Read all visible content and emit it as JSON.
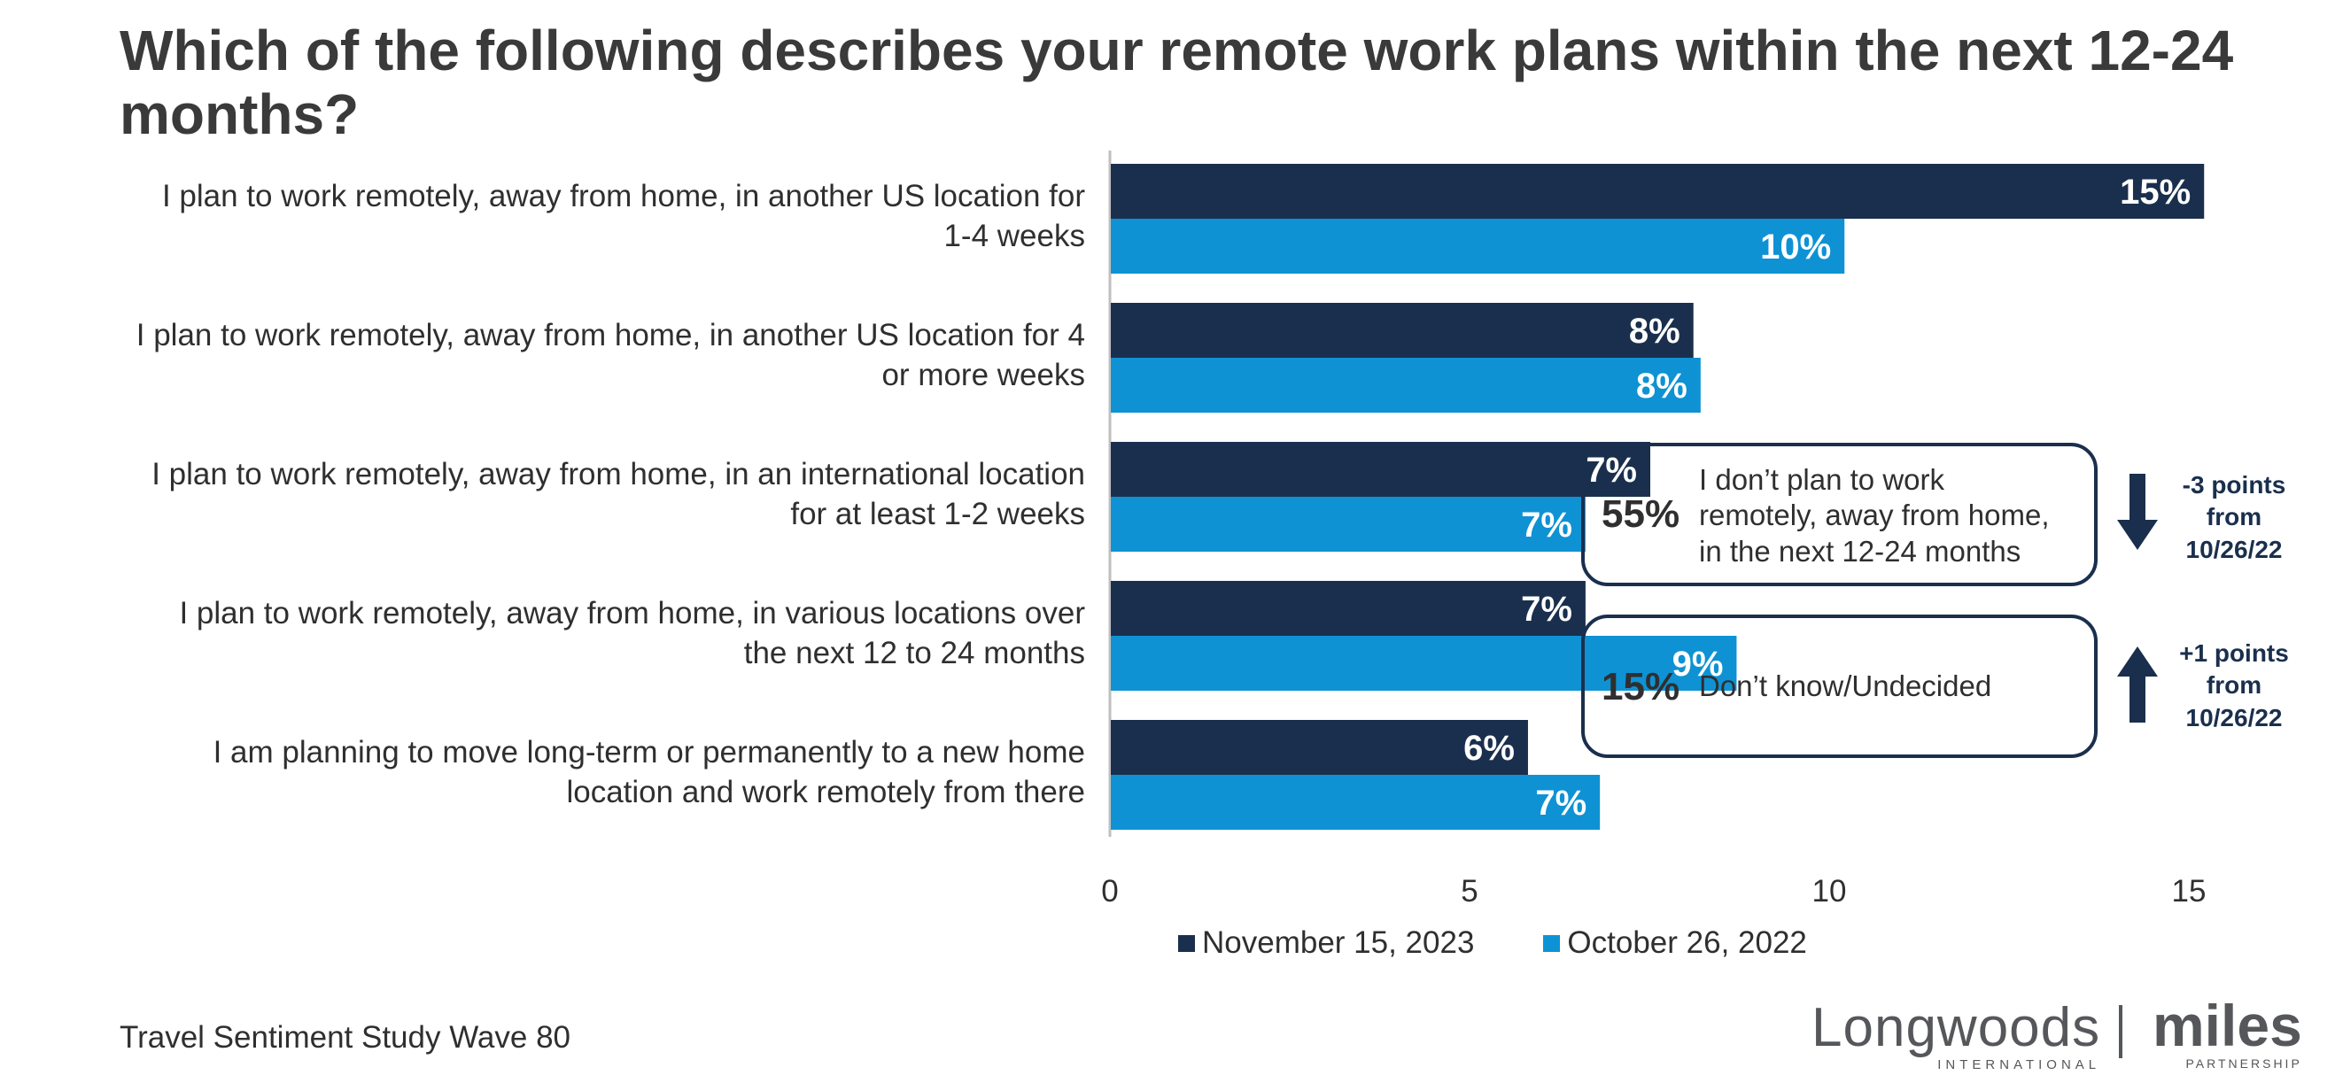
{
  "title": "Which of the following describes your remote work plans within the next 12-24 months?",
  "chart_data": {
    "type": "bar",
    "orientation": "horizontal",
    "categories": [
      [
        "I plan to work remotely, away from home, in another US location for",
        "1-4 weeks"
      ],
      [
        "I plan to work remotely, away from home, in another US location for 4",
        "or more weeks"
      ],
      [
        "I plan to work remotely, away from home, in an international location",
        "for at least 1-2 weeks"
      ],
      [
        "I plan to work remotely, away from home, in various locations over",
        "the next 12 to 24 months"
      ],
      [
        "I am planning to move long-term or permanently to a new home",
        "location and work remotely from there"
      ]
    ],
    "series": [
      {
        "name": "November 15, 2023",
        "color": "#1a2f4d",
        "values": [
          15.2,
          8.1,
          7.5,
          6.6,
          5.8
        ],
        "labels": [
          "15%",
          "8%",
          "7%",
          "7%",
          "6%"
        ]
      },
      {
        "name": "October 26, 2022",
        "color": "#0e92d4",
        "values": [
          10.2,
          8.2,
          6.6,
          8.7,
          6.8
        ],
        "labels": [
          "10%",
          "8%",
          "7%",
          "9%",
          "7%"
        ]
      }
    ],
    "xlim": [
      0,
      20
    ],
    "xticks": [
      "0",
      "5",
      "10",
      "15",
      "20"
    ],
    "legend_position": "bottom"
  },
  "callouts": [
    {
      "pct": "55%",
      "text": [
        "I don’t plan to work",
        "remotely, away from home,",
        "in the next 12-24 months"
      ],
      "change": [
        "-3 points",
        "from",
        "10/26/22"
      ],
      "direction": "down"
    },
    {
      "pct": "15%",
      "text": [
        "Don’t know/Undecided"
      ],
      "change": [
        "+1 points",
        "from",
        "10/26/22"
      ],
      "direction": "up"
    }
  ],
  "footer": "Travel Sentiment Study Wave 80",
  "logos": {
    "left": {
      "main": "Longwoods",
      "sub": "INTERNATIONAL"
    },
    "right": {
      "main": "miles",
      "sub": "PARTNERSHIP"
    }
  }
}
